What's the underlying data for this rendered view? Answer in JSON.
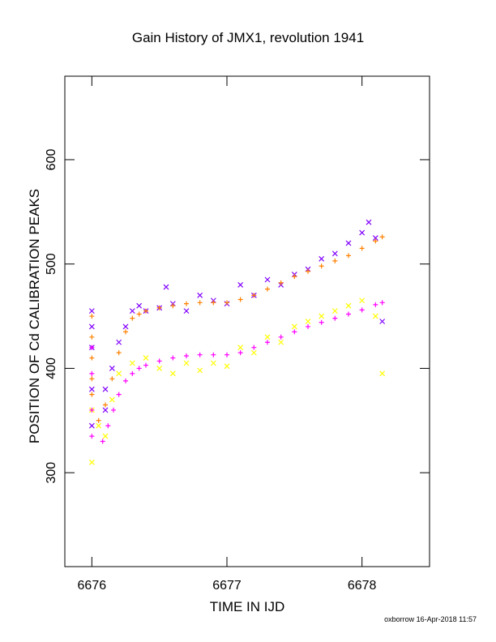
{
  "chart_data": {
    "type": "scatter",
    "title": "Gain History of JMX1, revolution 1941",
    "xlabel": "TIME IN IJD",
    "ylabel": "POSITION OF Cd CALIBRATION PEAKS",
    "xlim": [
      6675.8,
      6678.5
    ],
    "ylim": [
      210,
      680
    ],
    "xticks": [
      6676,
      6677,
      6678
    ],
    "xtick_labels": [
      "6676",
      "6677",
      "6678"
    ],
    "yticks": [
      300,
      400,
      500,
      600
    ],
    "ytick_labels": [
      "300",
      "400",
      "500",
      "600"
    ],
    "grid": false,
    "legend": "none",
    "footer": "oxborrow 16-Apr-2018 11:57",
    "series": [
      {
        "marker": "x",
        "color": "#8000ff",
        "x": [
          6676.0,
          6676.0,
          6676.0,
          6676.0,
          6676.0,
          6676.1,
          6676.1,
          6676.15,
          6676.2,
          6676.25,
          6676.3,
          6676.35,
          6676.4,
          6676.5,
          6676.55,
          6676.6,
          6676.7,
          6676.8,
          6676.9,
          6677.0,
          6677.1,
          6677.2,
          6677.3,
          6677.4,
          6677.5,
          6677.6,
          6677.7,
          6677.8,
          6677.9,
          6678.0,
          6678.05,
          6678.1,
          6678.15
        ],
        "y": [
          455,
          440,
          420,
          380,
          345,
          360,
          380,
          400,
          425,
          440,
          455,
          460,
          455,
          458,
          478,
          462,
          455,
          470,
          465,
          462,
          480,
          470,
          485,
          480,
          490,
          495,
          505,
          510,
          520,
          530,
          540,
          525,
          445
        ]
      },
      {
        "marker": "+",
        "color": "#ff8000",
        "x": [
          6676.0,
          6676.0,
          6676.0,
          6676.0,
          6676.0,
          6676.05,
          6676.1,
          6676.15,
          6676.2,
          6676.25,
          6676.3,
          6676.35,
          6676.4,
          6676.5,
          6676.6,
          6676.7,
          6676.8,
          6676.9,
          6677.0,
          6677.1,
          6677.2,
          6677.3,
          6677.4,
          6677.5,
          6677.6,
          6677.7,
          6677.8,
          6677.9,
          6678.0,
          6678.1,
          6678.15
        ],
        "y": [
          450,
          430,
          410,
          390,
          375,
          350,
          365,
          390,
          415,
          435,
          448,
          452,
          455,
          458,
          460,
          462,
          463,
          463,
          463,
          466,
          470,
          476,
          482,
          488,
          493,
          498,
          503,
          508,
          515,
          522,
          526
        ]
      },
      {
        "marker": "x",
        "color": "#ffff00",
        "x": [
          6676.0,
          6676.0,
          6676.05,
          6676.1,
          6676.15,
          6676.2,
          6676.3,
          6676.4,
          6676.5,
          6676.6,
          6676.7,
          6676.8,
          6676.9,
          6677.0,
          6677.1,
          6677.2,
          6677.3,
          6677.4,
          6677.5,
          6677.6,
          6677.7,
          6677.8,
          6677.9,
          6678.0,
          6678.1,
          6678.15
        ],
        "y": [
          310,
          360,
          345,
          335,
          370,
          395,
          405,
          410,
          400,
          395,
          405,
          398,
          405,
          402,
          420,
          415,
          430,
          425,
          440,
          445,
          450,
          455,
          460,
          465,
          450,
          395
        ]
      },
      {
        "marker": "+",
        "color": "#ff00ff",
        "x": [
          6676.0,
          6676.0,
          6676.0,
          6676.0,
          6676.08,
          6676.12,
          6676.16,
          6676.2,
          6676.25,
          6676.3,
          6676.35,
          6676.4,
          6676.5,
          6676.6,
          6676.7,
          6676.8,
          6676.9,
          6677.0,
          6677.1,
          6677.2,
          6677.3,
          6677.4,
          6677.5,
          6677.6,
          6677.7,
          6677.8,
          6677.9,
          6678.0,
          6678.1,
          6678.15
        ],
        "y": [
          420,
          395,
          360,
          335,
          330,
          345,
          360,
          375,
          388,
          395,
          400,
          403,
          407,
          410,
          412,
          413,
          413,
          413,
          415,
          420,
          425,
          430,
          435,
          440,
          444,
          448,
          452,
          456,
          461,
          463
        ]
      }
    ]
  }
}
